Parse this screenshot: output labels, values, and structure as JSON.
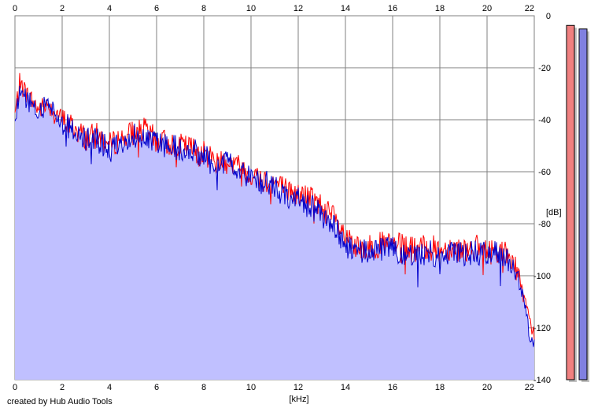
{
  "chart_data": {
    "type": "area",
    "xlabel": "[kHz]",
    "ylabel": "[dB]",
    "xlim": [
      0,
      22
    ],
    "ylim": [
      -140,
      0
    ],
    "x_ticks": [
      "0",
      "2",
      "4",
      "6",
      "8",
      "10",
      "12",
      "14",
      "16",
      "18",
      "20",
      "22"
    ],
    "y_ticks": [
      "0",
      "-20",
      "-40",
      "-60",
      "-80",
      "-100",
      "-120",
      "-140"
    ],
    "grid": true,
    "fill_color": "#c0c0ff",
    "series": [
      {
        "color": "#ff0000",
        "x": [
          0,
          0.2,
          0.5,
          1.0,
          1.4,
          2.0,
          2.5,
          3.0,
          3.5,
          4.0,
          4.5,
          5.0,
          5.5,
          6.0,
          6.5,
          7.0,
          7.5,
          8.0,
          8.5,
          9.0,
          9.5,
          10.0,
          10.5,
          11.0,
          11.5,
          12.0,
          12.5,
          13.0,
          13.5,
          14.0,
          14.5,
          15.0,
          15.5,
          16.0,
          16.5,
          17.0,
          17.5,
          18.0,
          18.5,
          19.0,
          19.5,
          20.0,
          20.5,
          21.0,
          21.3,
          21.6,
          21.8,
          22.0
        ],
        "y": [
          -38,
          -26,
          -30,
          -36,
          -34,
          -40,
          -43,
          -47,
          -46,
          -50,
          -47,
          -45,
          -44,
          -48,
          -49,
          -50,
          -51,
          -53,
          -55,
          -56,
          -58,
          -61,
          -63,
          -64,
          -67,
          -69,
          -70,
          -73,
          -78,
          -86,
          -90,
          -89,
          -88,
          -88,
          -89,
          -90,
          -89,
          -90,
          -89,
          -90,
          -89,
          -91,
          -90,
          -93,
          -98,
          -110,
          -118,
          -122
        ]
      },
      {
        "color": "#0000cc",
        "x": [
          0,
          0.2,
          0.5,
          1.0,
          1.4,
          2.0,
          2.5,
          3.0,
          3.5,
          4.0,
          4.5,
          5.0,
          5.5,
          6.0,
          6.5,
          7.0,
          7.5,
          8.0,
          8.5,
          9.0,
          9.5,
          10.0,
          10.5,
          11.0,
          11.5,
          12.0,
          12.5,
          13.0,
          13.5,
          14.0,
          14.5,
          15.0,
          15.5,
          16.0,
          16.5,
          17.0,
          17.5,
          18.0,
          18.5,
          19.0,
          19.5,
          20.0,
          20.5,
          21.0,
          21.3,
          21.6,
          21.8,
          22.0
        ],
        "y": [
          -42,
          -28,
          -32,
          -38,
          -33,
          -41,
          -44,
          -48,
          -48,
          -52,
          -48,
          -46,
          -46,
          -49,
          -50,
          -51,
          -52,
          -54,
          -56,
          -57,
          -59,
          -62,
          -64,
          -66,
          -69,
          -71,
          -73,
          -77,
          -81,
          -88,
          -92,
          -90,
          -90,
          -90,
          -91,
          -92,
          -91,
          -92,
          -91,
          -92,
          -91,
          -92,
          -91,
          -94,
          -100,
          -112,
          -122,
          -126
        ]
      }
    ],
    "meters": [
      {
        "color": "#f08080",
        "level": 0.995
      },
      {
        "color": "#8080e0",
        "level": 0.985
      }
    ]
  },
  "footer": {
    "credit": "created by Hub Audio Tools"
  }
}
